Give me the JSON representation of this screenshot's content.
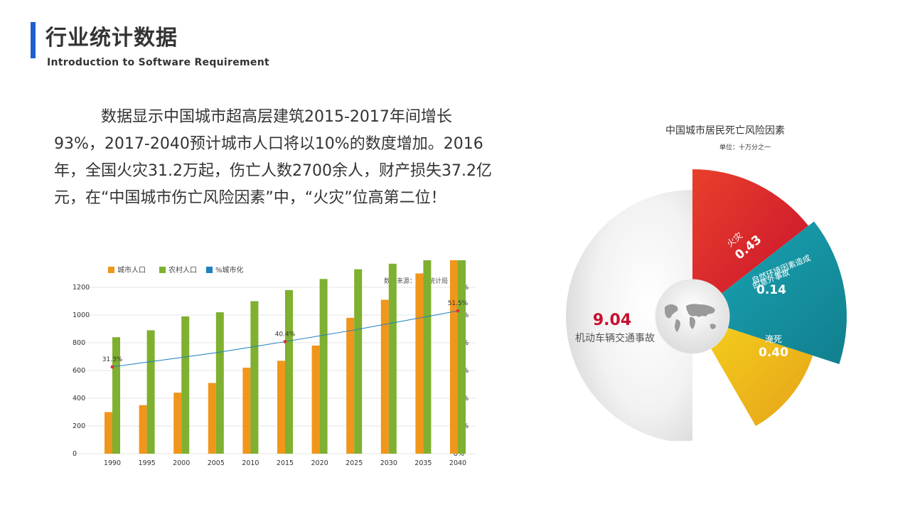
{
  "header": {
    "title": "行业统计数据",
    "subtitle": "Introduction to Software Requirement"
  },
  "main": {
    "paragraph": "数据显示中国城市超高层建筑2015-2017年间增长93%，2017-2040预计城市人口将以10%的数度增加。2016年，全国火灾31.2万起，伤亡人数2700余人，财产损失37.2亿元，在“中国城市伤亡风险因素”中，“火灾”位高第二位！"
  },
  "colors": {
    "accent": "#1f5fd0",
    "urban": "#f0961b",
    "rural": "#7fb030",
    "rate": "#1f7fc0",
    "rate_point": "#e03030"
  },
  "chart_data": [
    {
      "type": "bar",
      "source_note": "数据来源：国家统计局",
      "categories": [
        "1990",
        "1995",
        "2000",
        "2005",
        "2010",
        "2015",
        "2020",
        "2025",
        "2030",
        "2035",
        "2040"
      ],
      "series": [
        {
          "name": "城市人口",
          "axis": "left",
          "values": [
            300,
            350,
            440,
            510,
            620,
            670,
            780,
            980,
            1110,
            1300,
            1500
          ]
        },
        {
          "name": "农村人口",
          "axis": "left",
          "values": [
            840,
            890,
            990,
            1020,
            1100,
            1180,
            1260,
            1330,
            1370,
            1400,
            1440
          ]
        },
        {
          "name": "%城市化",
          "axis": "right",
          "kind": "line",
          "values": [
            31.3,
            33.0,
            34.7,
            36.4,
            38.4,
            40.4,
            42.5,
            44.6,
            46.9,
            49.2,
            51.5
          ],
          "labeled_points": [
            {
              "category": "1990",
              "label": "31.3%"
            },
            {
              "category": "2015",
              "label": "40.4%"
            },
            {
              "category": "2040",
              "label": "51.5%"
            }
          ]
        }
      ],
      "y_left_ticks": [
        "0",
        "200",
        "400",
        "600",
        "800",
        "1000",
        "1200"
      ],
      "y_right_ticks": [
        "0%",
        "10%",
        "20%",
        "30%",
        "40%",
        "50%",
        "60%"
      ],
      "legend": "top-left"
    },
    {
      "type": "pie",
      "title": "中国城市居民死亡风险因素",
      "unit": "单位：十万分之一",
      "slices": [
        {
          "label": "火灾",
          "value": 0.43
        },
        {
          "label": "自然环境因素造成的意外事故",
          "label_lines": [
            "自然环境因素造成",
            "的意外事故"
          ],
          "value": 0.14
        },
        {
          "label": "淹死",
          "value": 0.4
        },
        {
          "label": "机动车辆交通事故",
          "value": 9.04
        }
      ],
      "value_labels": [
        "0.43",
        "0.14",
        "0.40",
        "9.04"
      ]
    }
  ]
}
